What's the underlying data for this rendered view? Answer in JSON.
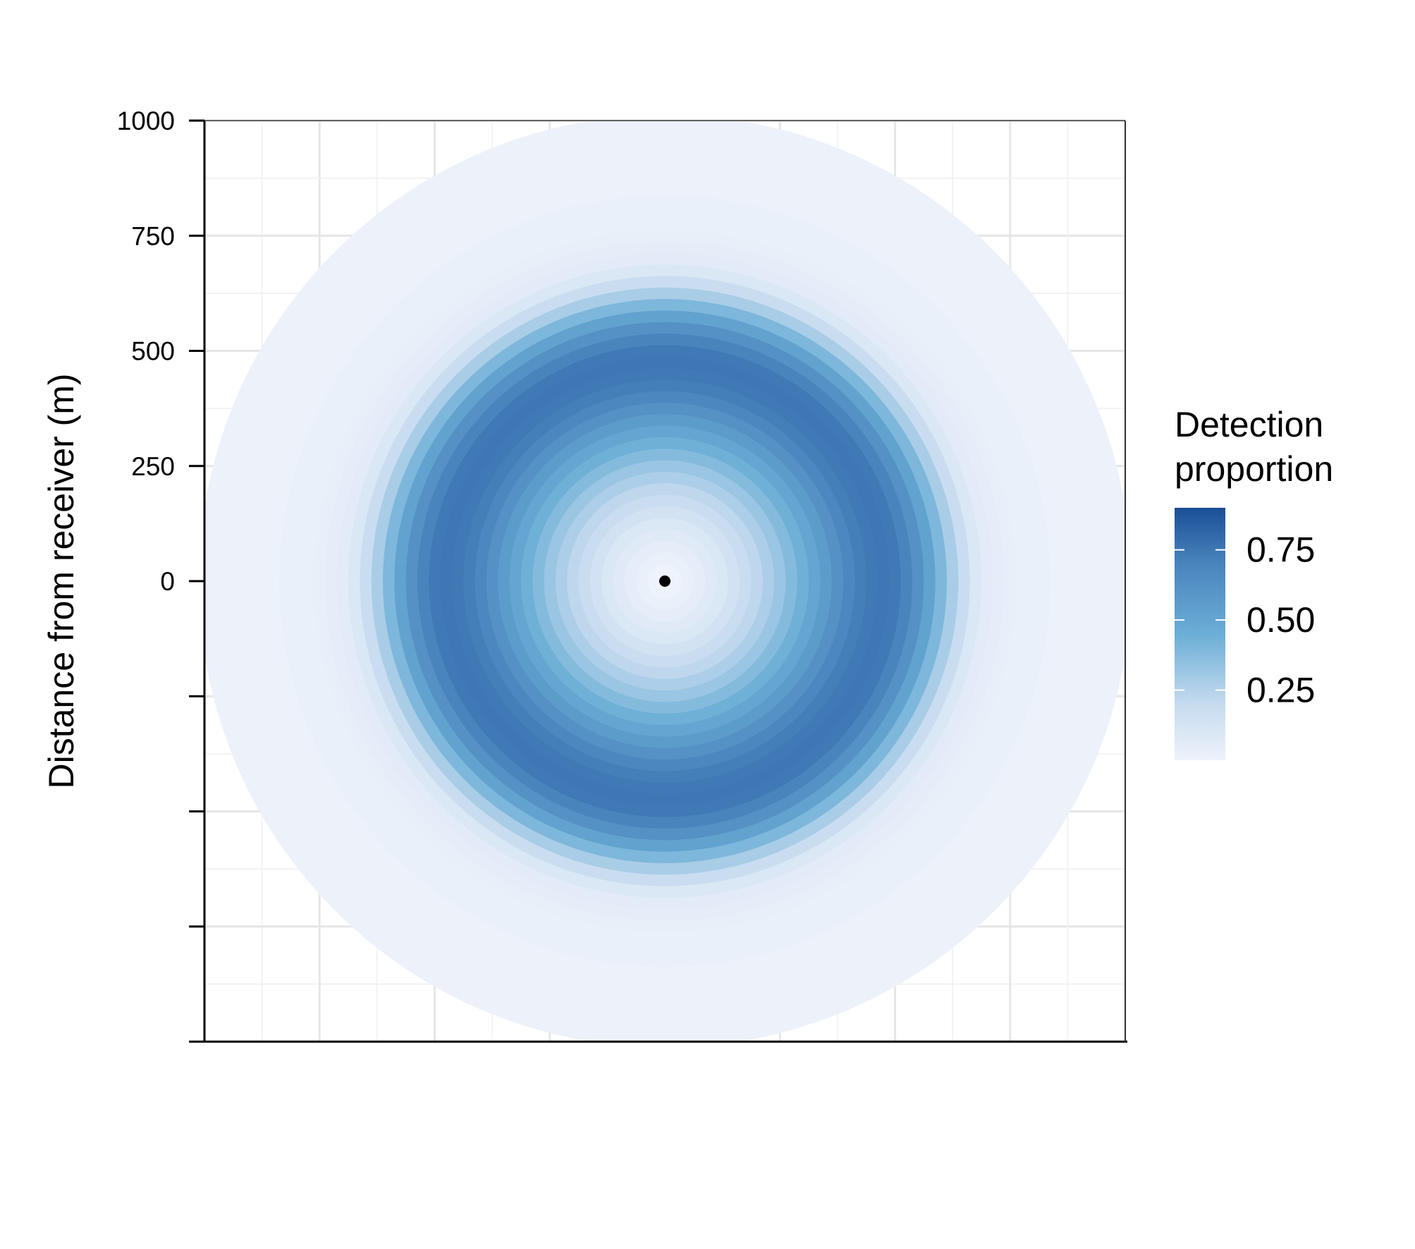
{
  "chart_data": {
    "type": "heatmap",
    "ylabel": "Distance from receiver (m)",
    "xlabel": "",
    "y_ticks": [
      {
        "value": 1000,
        "label": "1000"
      },
      {
        "value": 750,
        "label": "750"
      },
      {
        "value": 500,
        "label": "500"
      },
      {
        "value": 250,
        "label": "250"
      },
      {
        "value": 0,
        "label": "0"
      },
      {
        "value": -250,
        "label": ""
      },
      {
        "value": -500,
        "label": ""
      },
      {
        "value": -750,
        "label": ""
      },
      {
        "value": -1000,
        "label": ""
      }
    ],
    "xlim": [
      -1000,
      1000
    ],
    "ylim": [
      -1000,
      1000
    ],
    "grid": true,
    "receiver_position": [
      0,
      0
    ],
    "radial_profile": {
      "distance_m": [
        0,
        25,
        50,
        75,
        100,
        125,
        150,
        175,
        200,
        225,
        250,
        275,
        300,
        325,
        350,
        375,
        400,
        425,
        450,
        475,
        500,
        525,
        550,
        575,
        600,
        625,
        650,
        675,
        700,
        725,
        750,
        775,
        800,
        825,
        850,
        875,
        900,
        925,
        950,
        975,
        1000
      ],
      "detection_proportion": [
        0.0,
        0.0,
        0.02,
        0.04,
        0.07,
        0.1,
        0.14,
        0.18,
        0.22,
        0.27,
        0.32,
        0.38,
        0.44,
        0.5,
        0.56,
        0.62,
        0.68,
        0.72,
        0.74,
        0.75,
        0.74,
        0.7,
        0.62,
        0.52,
        0.4,
        0.28,
        0.18,
        0.1,
        0.06,
        0.04,
        0.03,
        0.02,
        0.02,
        0.02,
        0.01,
        0.01,
        0.01,
        0.01,
        0.01,
        0.01,
        0.01
      ]
    },
    "legend": {
      "title_line1": "Detection",
      "title_line2": "proportion",
      "placement": "right",
      "range": [
        0,
        0.9
      ],
      "ticks": [
        {
          "value": 0.75,
          "label": "0.75"
        },
        {
          "value": 0.5,
          "label": "0.50"
        },
        {
          "value": 0.25,
          "label": "0.25"
        }
      ]
    },
    "colors": {
      "low": "#eef2fb",
      "mid1": "#c6dbef",
      "mid2": "#6baed6",
      "mid3": "#4a84bd",
      "high": "#1a4f96",
      "receiver": "#000000",
      "axis": "#000000",
      "grid_major": "#e6e6e6",
      "grid_minor": "#f2f2f2"
    }
  }
}
